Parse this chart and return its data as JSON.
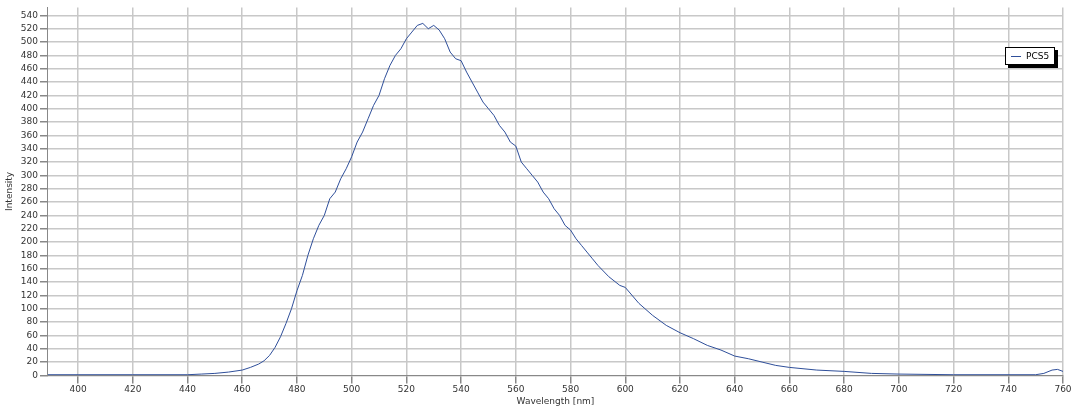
{
  "chart_data": {
    "type": "line",
    "xlabel": "Wavelength [nm]",
    "ylabel": "Intensity",
    "x": [
      389,
      400,
      420,
      440,
      445,
      450,
      455,
      460,
      463,
      466,
      468,
      470,
      472,
      474,
      476,
      478,
      480,
      482,
      484,
      486,
      488,
      490,
      492,
      494,
      496,
      498,
      500,
      502,
      504,
      506,
      508,
      510,
      512,
      514,
      516,
      518,
      520,
      522,
      524,
      526,
      528,
      530,
      532,
      534,
      536,
      538,
      540,
      542,
      544,
      546,
      548,
      550,
      552,
      554,
      556,
      558,
      560,
      562,
      564,
      566,
      568,
      570,
      572,
      574,
      576,
      578,
      580,
      582,
      584,
      586,
      588,
      590,
      594,
      598,
      600,
      605,
      610,
      615,
      620,
      625,
      630,
      635,
      640,
      645,
      650,
      655,
      660,
      670,
      680,
      690,
      700,
      720,
      750,
      753,
      756,
      758,
      760
    ],
    "series": [
      {
        "name": "PCS5",
        "color": "#2f4f9a",
        "values": [
          1,
          1,
          1,
          1,
          2,
          3,
          5,
          8,
          12,
          17,
          22,
          30,
          42,
          58,
          78,
          100,
          127,
          150,
          180,
          205,
          225,
          240,
          265,
          275,
          295,
          310,
          328,
          350,
          365,
          385,
          405,
          420,
          445,
          465,
          480,
          490,
          505,
          515,
          525,
          528,
          520,
          525,
          518,
          505,
          485,
          475,
          472,
          455,
          440,
          425,
          410,
          400,
          390,
          375,
          365,
          350,
          344,
          320,
          310,
          300,
          290,
          275,
          265,
          250,
          240,
          225,
          218,
          205,
          195,
          185,
          175,
          165,
          148,
          135,
          132,
          108,
          90,
          75,
          64,
          55,
          45,
          38,
          29,
          25,
          20,
          15,
          12,
          8,
          6,
          3,
          2,
          1,
          1,
          3,
          8,
          9,
          6
        ]
      }
    ],
    "xlim": [
      389,
      760
    ],
    "xticks": [
      400,
      420,
      440,
      460,
      480,
      500,
      520,
      540,
      560,
      580,
      600,
      620,
      640,
      660,
      680,
      700,
      720,
      740,
      760
    ],
    "ylim": [
      0,
      552
    ],
    "yticks": [
      0,
      20,
      40,
      60,
      80,
      100,
      120,
      140,
      160,
      180,
      200,
      220,
      240,
      260,
      280,
      300,
      320,
      340,
      360,
      380,
      400,
      420,
      440,
      460,
      480,
      500,
      520,
      540
    ],
    "grid": true,
    "legend": "top right",
    "marker": "none",
    "line_style": "solid"
  }
}
